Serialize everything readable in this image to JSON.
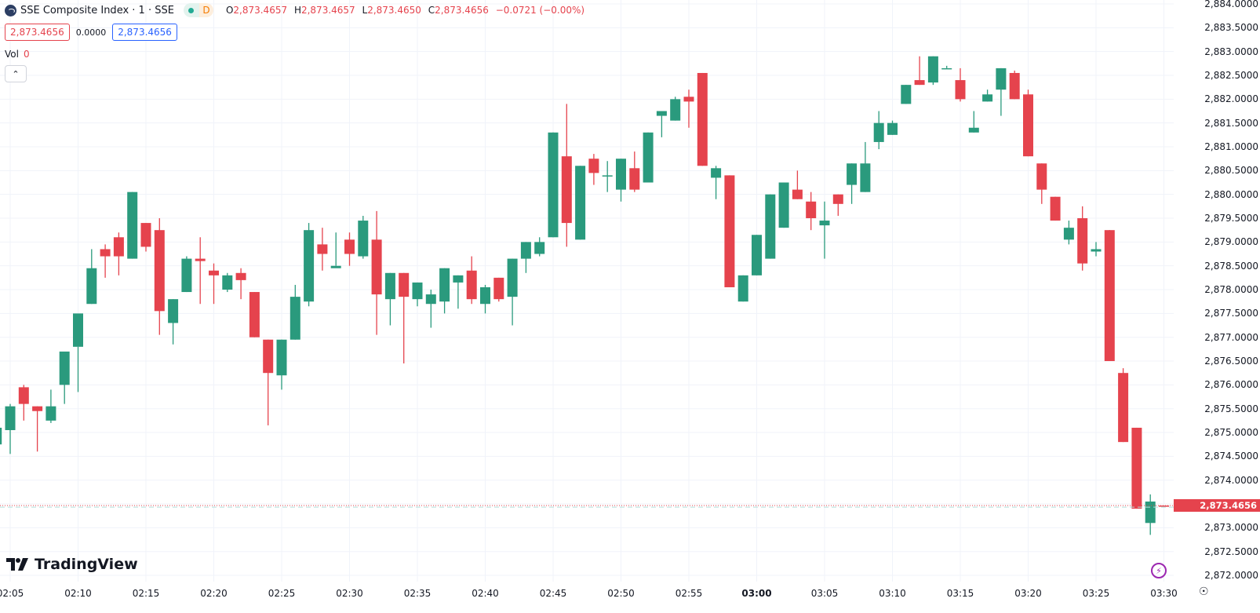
{
  "header": {
    "symbol_title": "SSE Composite Index · 1 · SSE",
    "market_status_icon": "green-dot-icon",
    "data_badge": "D",
    "ohlc": {
      "o_label": "O",
      "o_value": "2,873.4657",
      "h_label": "H",
      "h_value": "2,873.4657",
      "l_label": "L",
      "l_value": "2,873.4650",
      "c_label": "C",
      "c_value": "2,873.4656",
      "change": "−0.0721 (−0.00%)"
    },
    "sell_price": "2,873.4656",
    "spread": "0.0000",
    "buy_price": "2,873.4656",
    "volume_label": "Vol",
    "volume_value": "0",
    "collapse_icon": "chevron-up-icon"
  },
  "branding": {
    "logo_text": "TradingView"
  },
  "last_price_tag": "2,873.4656",
  "colors": {
    "up": "#2a9a7d",
    "down": "#e5434d",
    "grid": "#f0f3fa",
    "price_line": "#e5434d"
  },
  "chart_data": {
    "type": "candlestick",
    "title": "SSE Composite Index · 1 · SSE",
    "xlabel": "",
    "ylabel": "",
    "ylim": [
      2871.8,
      2884.08
    ],
    "x_ticks": [
      "02:05",
      "02:10",
      "02:15",
      "02:20",
      "02:25",
      "02:30",
      "02:35",
      "02:40",
      "02:45",
      "02:50",
      "02:55",
      "03:00",
      "03:05",
      "03:10",
      "03:15",
      "03:20",
      "03:25",
      "03:30"
    ],
    "y_ticks": [
      "2,884.0000",
      "2,883.5000",
      "2,883.0000",
      "2,882.5000",
      "2,882.0000",
      "2,881.5000",
      "2,881.0000",
      "2,880.5000",
      "2,880.0000",
      "2,879.5000",
      "2,879.0000",
      "2,878.5000",
      "2,878.0000",
      "2,877.5000",
      "2,877.0000",
      "2,876.5000",
      "2,876.0000",
      "2,875.5000",
      "2,875.0000",
      "2,874.5000",
      "2,874.0000",
      "2,873.5000",
      "2,873.0000",
      "2,872.5000",
      "2,872.0000"
    ],
    "grid": true,
    "last_price": 2873.4656,
    "candles": [
      {
        "t": "02:04",
        "o": 2874.75,
        "h": 2875.15,
        "l": 2874.45,
        "c": 2875.1
      },
      {
        "t": "02:05",
        "o": 2875.05,
        "h": 2875.6,
        "l": 2874.55,
        "c": 2875.55
      },
      {
        "t": "02:06",
        "o": 2875.95,
        "h": 2876.0,
        "l": 2875.25,
        "c": 2875.6
      },
      {
        "t": "02:07",
        "o": 2875.55,
        "h": 2875.55,
        "l": 2874.6,
        "c": 2875.45
      },
      {
        "t": "02:08",
        "o": 2875.25,
        "h": 2875.9,
        "l": 2875.2,
        "c": 2875.55
      },
      {
        "t": "02:09",
        "o": 2876.0,
        "h": 2876.65,
        "l": 2875.6,
        "c": 2876.7
      },
      {
        "t": "02:10",
        "o": 2876.8,
        "h": 2876.8,
        "l": 2875.85,
        "c": 2877.5
      },
      {
        "t": "02:11",
        "o": 2877.7,
        "h": 2878.85,
        "l": 2877.7,
        "c": 2878.45
      },
      {
        "t": "02:12",
        "o": 2878.85,
        "h": 2878.95,
        "l": 2878.25,
        "c": 2878.7
      },
      {
        "t": "02:13",
        "o": 2879.1,
        "h": 2879.2,
        "l": 2878.3,
        "c": 2878.7
      },
      {
        "t": "02:14",
        "o": 2878.65,
        "h": 2880.05,
        "l": 2878.65,
        "c": 2880.05
      },
      {
        "t": "02:15",
        "o": 2879.4,
        "h": 2879.4,
        "l": 2878.8,
        "c": 2878.9
      },
      {
        "t": "02:16",
        "o": 2879.25,
        "h": 2879.5,
        "l": 2877.05,
        "c": 2877.55
      },
      {
        "t": "02:17",
        "o": 2877.3,
        "h": 2877.8,
        "l": 2876.85,
        "c": 2877.8
      },
      {
        "t": "02:18",
        "o": 2877.95,
        "h": 2878.7,
        "l": 2877.95,
        "c": 2878.65
      },
      {
        "t": "02:19",
        "o": 2878.65,
        "h": 2879.1,
        "l": 2877.7,
        "c": 2878.6
      },
      {
        "t": "02:20",
        "o": 2878.4,
        "h": 2878.55,
        "l": 2877.7,
        "c": 2878.3
      },
      {
        "t": "02:21",
        "o": 2878.0,
        "h": 2878.35,
        "l": 2877.95,
        "c": 2878.3
      },
      {
        "t": "02:22",
        "o": 2878.35,
        "h": 2878.45,
        "l": 2877.8,
        "c": 2878.2
      },
      {
        "t": "02:23",
        "o": 2877.95,
        "h": 2877.95,
        "l": 2877.0,
        "c": 2877.0
      },
      {
        "t": "02:24",
        "o": 2876.95,
        "h": 2876.95,
        "l": 2875.15,
        "c": 2876.25
      },
      {
        "t": "02:25",
        "o": 2876.2,
        "h": 2876.95,
        "l": 2875.9,
        "c": 2876.95
      },
      {
        "t": "02:26",
        "o": 2876.95,
        "h": 2878.1,
        "l": 2876.95,
        "c": 2877.85
      },
      {
        "t": "02:27",
        "o": 2877.75,
        "h": 2879.4,
        "l": 2877.65,
        "c": 2879.25
      },
      {
        "t": "02:28",
        "o": 2878.95,
        "h": 2879.3,
        "l": 2878.4,
        "c": 2878.75
      },
      {
        "t": "02:29",
        "o": 2878.45,
        "h": 2879.2,
        "l": 2878.5,
        "c": 2878.5
      },
      {
        "t": "02:30",
        "o": 2879.05,
        "h": 2879.2,
        "l": 2878.5,
        "c": 2878.75
      },
      {
        "t": "02:31",
        "o": 2878.7,
        "h": 2879.55,
        "l": 2878.65,
        "c": 2879.45
      },
      {
        "t": "02:32",
        "o": 2879.05,
        "h": 2879.65,
        "l": 2877.05,
        "c": 2877.9
      },
      {
        "t": "02:33",
        "o": 2877.8,
        "h": 2878.35,
        "l": 2877.25,
        "c": 2878.35
      },
      {
        "t": "02:34",
        "o": 2878.35,
        "h": 2878.35,
        "l": 2876.45,
        "c": 2877.85
      },
      {
        "t": "02:35",
        "o": 2877.8,
        "h": 2878.15,
        "l": 2877.65,
        "c": 2878.15
      },
      {
        "t": "02:36",
        "o": 2877.7,
        "h": 2878.0,
        "l": 2877.2,
        "c": 2877.9
      },
      {
        "t": "02:37",
        "o": 2877.75,
        "h": 2878.45,
        "l": 2877.5,
        "c": 2878.45
      },
      {
        "t": "02:38",
        "o": 2878.15,
        "h": 2878.3,
        "l": 2877.6,
        "c": 2878.3
      },
      {
        "t": "02:39",
        "o": 2878.4,
        "h": 2878.7,
        "l": 2877.7,
        "c": 2877.8
      },
      {
        "t": "02:40",
        "o": 2877.7,
        "h": 2878.1,
        "l": 2877.5,
        "c": 2878.05
      },
      {
        "t": "02:41",
        "o": 2878.25,
        "h": 2878.25,
        "l": 2877.75,
        "c": 2877.8
      },
      {
        "t": "02:42",
        "o": 2877.85,
        "h": 2878.65,
        "l": 2877.25,
        "c": 2878.65
      },
      {
        "t": "02:43",
        "o": 2878.65,
        "h": 2879.0,
        "l": 2878.35,
        "c": 2879.0
      },
      {
        "t": "02:44",
        "o": 2878.75,
        "h": 2879.1,
        "l": 2878.7,
        "c": 2879.0
      },
      {
        "t": "02:45",
        "o": 2879.1,
        "h": 2881.3,
        "l": 2879.1,
        "c": 2881.3
      },
      {
        "t": "02:46",
        "o": 2880.8,
        "h": 2881.9,
        "l": 2878.9,
        "c": 2879.4
      },
      {
        "t": "02:47",
        "o": 2879.05,
        "h": 2880.6,
        "l": 2879.05,
        "c": 2880.6
      },
      {
        "t": "02:48",
        "o": 2880.75,
        "h": 2880.85,
        "l": 2880.2,
        "c": 2880.45
      },
      {
        "t": "02:49",
        "o": 2880.4,
        "h": 2880.7,
        "l": 2880.05,
        "c": 2880.4
      },
      {
        "t": "02:50",
        "o": 2880.1,
        "h": 2880.75,
        "l": 2879.85,
        "c": 2880.75
      },
      {
        "t": "02:51",
        "o": 2880.55,
        "h": 2880.9,
        "l": 2880.05,
        "c": 2880.1
      },
      {
        "t": "02:52",
        "o": 2880.25,
        "h": 2881.3,
        "l": 2880.25,
        "c": 2881.3
      },
      {
        "t": "02:53",
        "o": 2881.65,
        "h": 2881.65,
        "l": 2881.2,
        "c": 2881.75
      },
      {
        "t": "02:54",
        "o": 2881.55,
        "h": 2882.05,
        "l": 2881.55,
        "c": 2882.0
      },
      {
        "t": "02:55",
        "o": 2882.05,
        "h": 2882.2,
        "l": 2881.4,
        "c": 2881.95
      },
      {
        "t": "02:56",
        "o": 2882.55,
        "h": 2882.55,
        "l": 2880.6,
        "c": 2880.6
      },
      {
        "t": "02:57",
        "o": 2880.35,
        "h": 2880.6,
        "l": 2879.9,
        "c": 2880.55
      },
      {
        "t": "02:58",
        "o": 2880.4,
        "h": 2880.4,
        "l": 2878.05,
        "c": 2878.05
      },
      {
        "t": "02:59",
        "o": 2877.75,
        "h": 2878.3,
        "l": 2877.75,
        "c": 2878.3
      },
      {
        "t": "03:00",
        "o": 2878.3,
        "h": 2879.15,
        "l": 2878.3,
        "c": 2879.15
      },
      {
        "t": "03:01",
        "o": 2878.65,
        "h": 2880.0,
        "l": 2878.65,
        "c": 2880.0
      },
      {
        "t": "03:02",
        "o": 2879.3,
        "h": 2880.25,
        "l": 2879.3,
        "c": 2880.25
      },
      {
        "t": "03:03",
        "o": 2880.1,
        "h": 2880.5,
        "l": 2879.9,
        "c": 2879.9
      },
      {
        "t": "03:04",
        "o": 2879.85,
        "h": 2880.05,
        "l": 2879.25,
        "c": 2879.5
      },
      {
        "t": "03:05",
        "o": 2879.35,
        "h": 2879.85,
        "l": 2878.65,
        "c": 2879.45
      },
      {
        "t": "03:06",
        "o": 2880.0,
        "h": 2880.0,
        "l": 2879.55,
        "c": 2879.8
      },
      {
        "t": "03:07",
        "o": 2880.2,
        "h": 2880.65,
        "l": 2879.8,
        "c": 2880.65
      },
      {
        "t": "03:08",
        "o": 2880.05,
        "h": 2881.1,
        "l": 2880.05,
        "c": 2880.65
      },
      {
        "t": "03:09",
        "o": 2881.1,
        "h": 2881.75,
        "l": 2880.95,
        "c": 2881.5
      },
      {
        "t": "03:10",
        "o": 2881.25,
        "h": 2881.55,
        "l": 2881.25,
        "c": 2881.5
      },
      {
        "t": "03:11",
        "o": 2881.9,
        "h": 2882.3,
        "l": 2881.9,
        "c": 2882.3
      },
      {
        "t": "03:12",
        "o": 2882.4,
        "h": 2882.9,
        "l": 2882.3,
        "c": 2882.3
      },
      {
        "t": "03:13",
        "o": 2882.35,
        "h": 2882.9,
        "l": 2882.3,
        "c": 2882.9
      },
      {
        "t": "03:14",
        "o": 2882.65,
        "h": 2882.7,
        "l": 2882.65,
        "c": 2882.65
      },
      {
        "t": "03:15",
        "o": 2882.4,
        "h": 2882.65,
        "l": 2881.95,
        "c": 2882.0
      },
      {
        "t": "03:16",
        "o": 2881.3,
        "h": 2881.75,
        "l": 2881.3,
        "c": 2881.4
      },
      {
        "t": "03:17",
        "o": 2881.95,
        "h": 2882.2,
        "l": 2881.95,
        "c": 2882.1
      },
      {
        "t": "03:18",
        "o": 2882.2,
        "h": 2882.65,
        "l": 2881.65,
        "c": 2882.65
      },
      {
        "t": "03:19",
        "o": 2882.55,
        "h": 2882.6,
        "l": 2882.0,
        "c": 2882.0
      },
      {
        "t": "03:20",
        "o": 2882.1,
        "h": 2882.2,
        "l": 2880.8,
        "c": 2880.8
      },
      {
        "t": "03:21",
        "o": 2880.65,
        "h": 2880.65,
        "l": 2879.8,
        "c": 2880.1
      },
      {
        "t": "03:22",
        "o": 2879.95,
        "h": 2879.95,
        "l": 2879.45,
        "c": 2879.45
      },
      {
        "t": "03:23",
        "o": 2879.05,
        "h": 2879.45,
        "l": 2878.95,
        "c": 2879.3
      },
      {
        "t": "03:24",
        "o": 2879.5,
        "h": 2879.75,
        "l": 2878.4,
        "c": 2878.55
      },
      {
        "t": "03:25",
        "o": 2878.8,
        "h": 2879.0,
        "l": 2878.7,
        "c": 2878.85
      },
      {
        "t": "03:26",
        "o": 2879.25,
        "h": 2879.25,
        "l": 2876.5,
        "c": 2876.5
      },
      {
        "t": "03:27",
        "o": 2876.25,
        "h": 2876.35,
        "l": 2874.8,
        "c": 2874.8
      },
      {
        "t": "03:28",
        "o": 2875.1,
        "h": 2875.1,
        "l": 2873.4,
        "c": 2873.4
      },
      {
        "t": "03:29",
        "o": 2873.1,
        "h": 2873.7,
        "l": 2872.85,
        "c": 2873.55
      },
      {
        "t": "03:30",
        "o": 2873.4657,
        "h": 2873.4657,
        "l": 2873.465,
        "c": 2873.4656
      }
    ]
  },
  "icons": {
    "replay": "lightning-icon",
    "settings": "settings-hexagon-icon"
  }
}
